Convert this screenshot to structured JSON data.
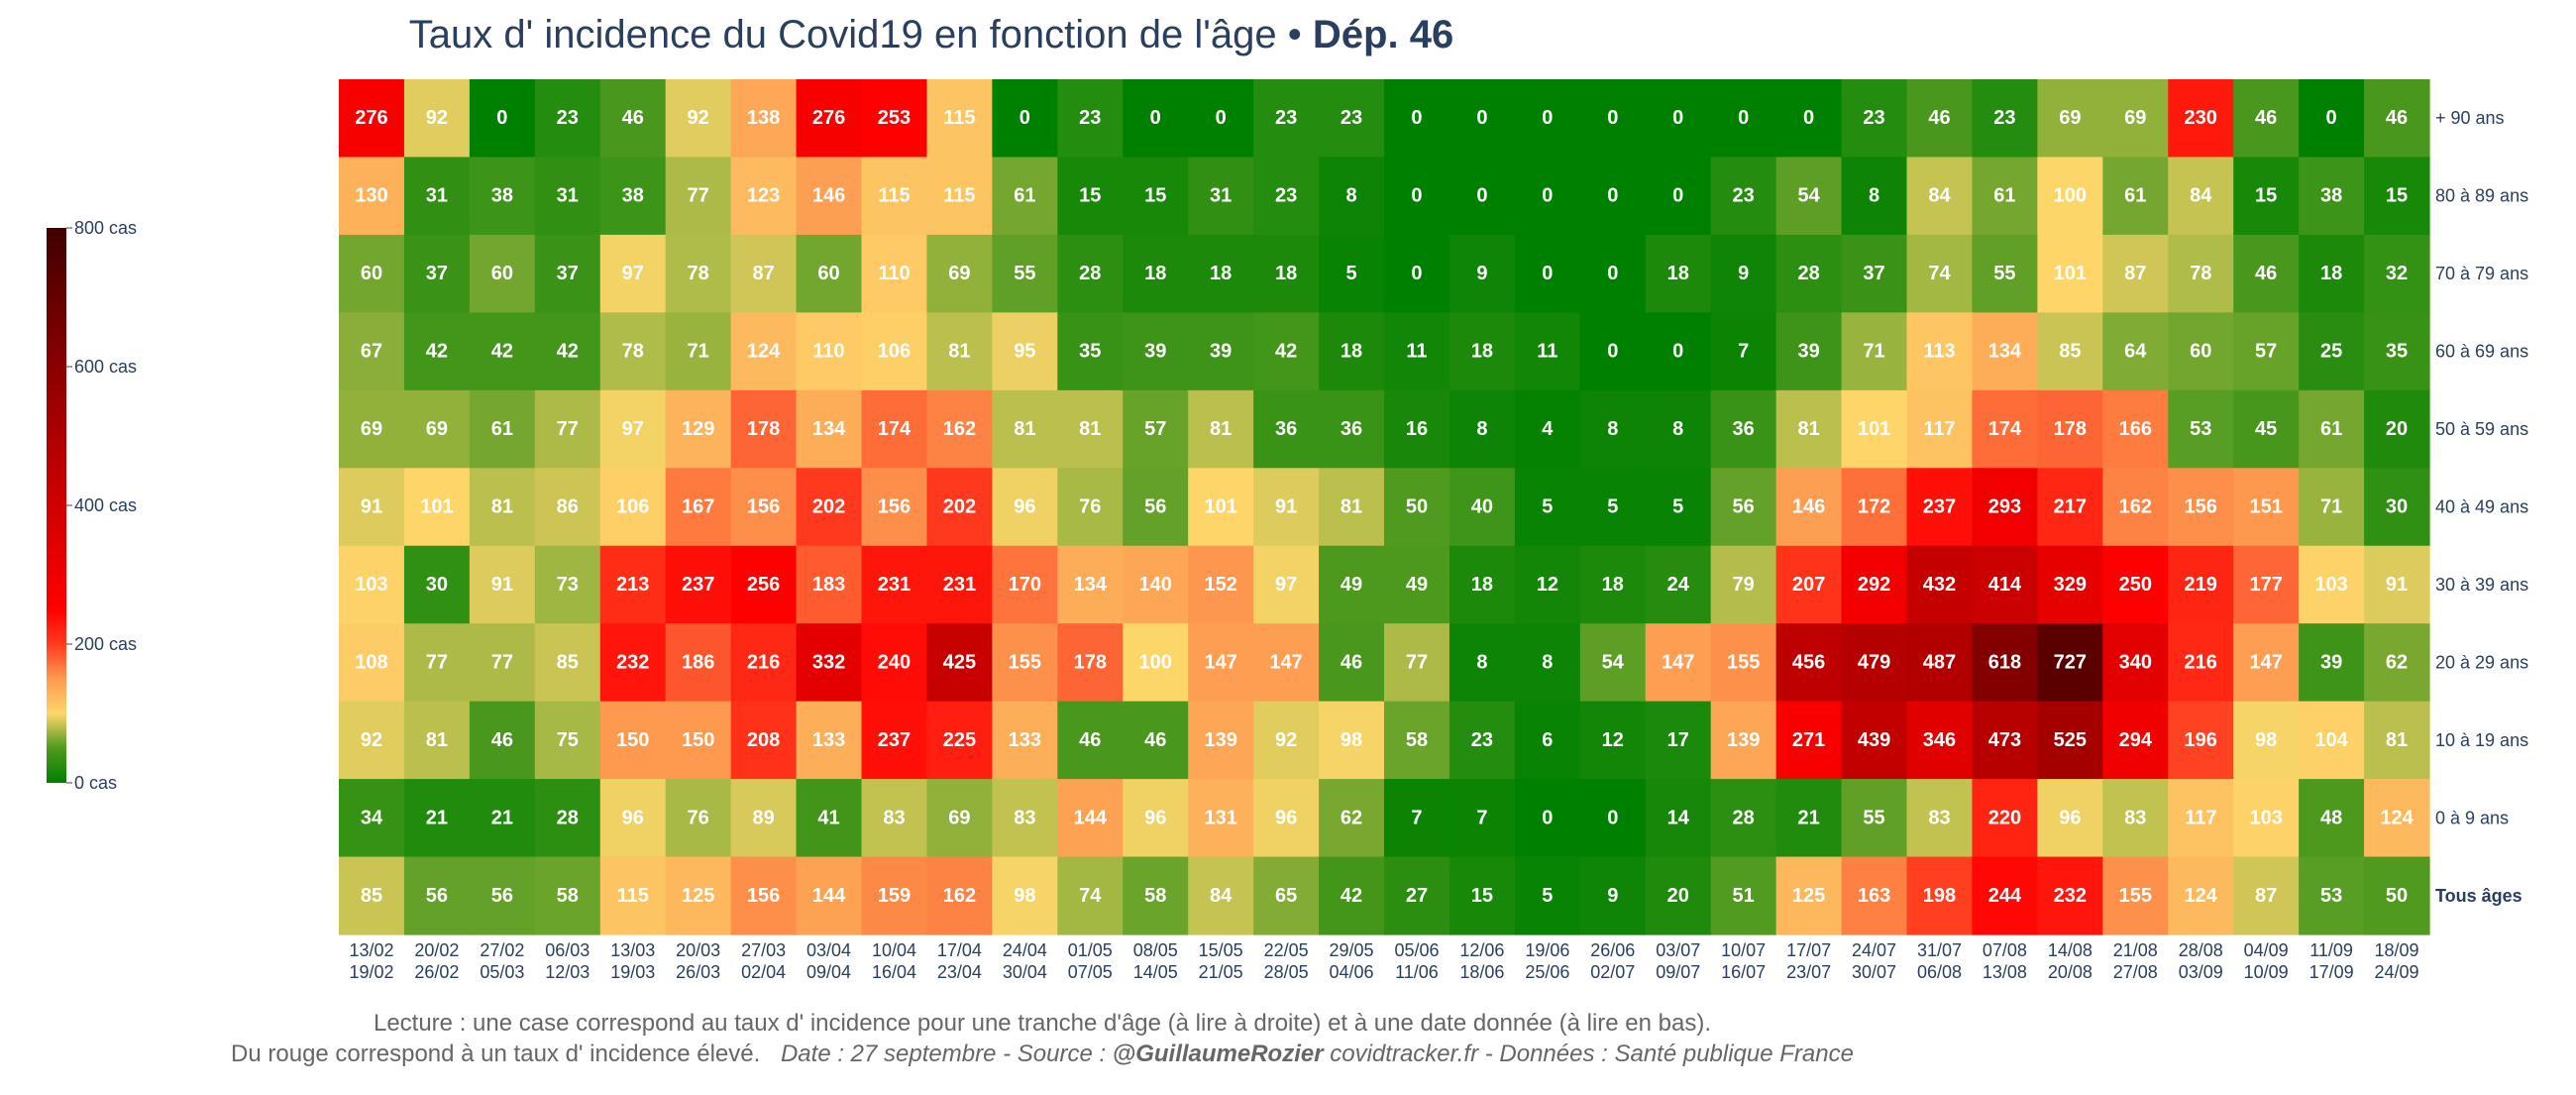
{
  "chart_data": {
    "type": "heatmap",
    "title": "Taux d' incidence du Covid19 en fonction de l'âge",
    "title_separator": "•",
    "title_dept": "Dép. 46",
    "rows": [
      "+ 90 ans",
      "80 à 89 ans",
      "70 à 79 ans",
      "60 à 69 ans",
      "50 à 59 ans",
      "40 à 49 ans",
      "30 à 39 ans",
      "20 à 29 ans",
      "10 à 19 ans",
      "0 à 9 ans",
      "Tous âges"
    ],
    "bold_row": "Tous âges",
    "columns": [
      [
        "13/02",
        "19/02"
      ],
      [
        "20/02",
        "26/02"
      ],
      [
        "27/02",
        "05/03"
      ],
      [
        "06/03",
        "12/03"
      ],
      [
        "13/03",
        "19/03"
      ],
      [
        "20/03",
        "26/03"
      ],
      [
        "27/03",
        "02/04"
      ],
      [
        "03/04",
        "09/04"
      ],
      [
        "10/04",
        "16/04"
      ],
      [
        "17/04",
        "23/04"
      ],
      [
        "24/04",
        "30/04"
      ],
      [
        "01/05",
        "07/05"
      ],
      [
        "08/05",
        "14/05"
      ],
      [
        "15/05",
        "21/05"
      ],
      [
        "22/05",
        "28/05"
      ],
      [
        "29/05",
        "04/06"
      ],
      [
        "05/06",
        "11/06"
      ],
      [
        "12/06",
        "18/06"
      ],
      [
        "19/06",
        "25/06"
      ],
      [
        "26/06",
        "02/07"
      ],
      [
        "03/07",
        "09/07"
      ],
      [
        "10/07",
        "16/07"
      ],
      [
        "17/07",
        "23/07"
      ],
      [
        "24/07",
        "30/07"
      ],
      [
        "31/07",
        "06/08"
      ],
      [
        "07/08",
        "13/08"
      ],
      [
        "14/08",
        "20/08"
      ],
      [
        "21/08",
        "27/08"
      ],
      [
        "28/08",
        "03/09"
      ],
      [
        "04/09",
        "10/09"
      ],
      [
        "11/09",
        "17/09"
      ],
      [
        "18/09",
        "24/09"
      ]
    ],
    "values": [
      [
        276,
        92,
        0,
        23,
        46,
        92,
        138,
        276,
        253,
        115,
        0,
        23,
        0,
        0,
        23,
        23,
        0,
        0,
        0,
        0,
        0,
        0,
        0,
        23,
        46,
        23,
        69,
        69,
        230,
        46,
        0,
        46
      ],
      [
        130,
        31,
        38,
        31,
        38,
        77,
        123,
        146,
        115,
        115,
        61,
        15,
        15,
        31,
        23,
        8,
        0,
        0,
        0,
        0,
        0,
        23,
        54,
        8,
        84,
        61,
        100,
        61,
        84,
        15,
        38,
        15
      ],
      [
        60,
        37,
        60,
        37,
        97,
        78,
        87,
        60,
        110,
        69,
        55,
        28,
        18,
        18,
        18,
        5,
        0,
        9,
        0,
        0,
        18,
        9,
        28,
        37,
        74,
        55,
        101,
        87,
        78,
        46,
        18,
        32
      ],
      [
        67,
        42,
        42,
        42,
        78,
        71,
        124,
        110,
        106,
        81,
        95,
        35,
        39,
        39,
        42,
        18,
        11,
        18,
        11,
        0,
        0,
        7,
        39,
        71,
        113,
        134,
        85,
        64,
        60,
        57,
        25,
        35
      ],
      [
        69,
        69,
        61,
        77,
        97,
        129,
        178,
        134,
        174,
        162,
        81,
        81,
        57,
        81,
        36,
        36,
        16,
        8,
        4,
        8,
        8,
        36,
        81,
        101,
        117,
        174,
        178,
        166,
        53,
        45,
        61,
        20
      ],
      [
        91,
        101,
        81,
        86,
        106,
        167,
        156,
        202,
        156,
        202,
        96,
        76,
        56,
        101,
        91,
        81,
        50,
        40,
        5,
        5,
        5,
        56,
        146,
        172,
        237,
        293,
        217,
        162,
        156,
        151,
        71,
        30
      ],
      [
        103,
        30,
        91,
        73,
        213,
        237,
        256,
        183,
        231,
        231,
        170,
        134,
        140,
        152,
        97,
        49,
        49,
        18,
        12,
        18,
        24,
        79,
        207,
        292,
        432,
        414,
        329,
        250,
        219,
        177,
        103,
        91
      ],
      [
        108,
        77,
        77,
        85,
        232,
        186,
        216,
        332,
        240,
        425,
        155,
        178,
        100,
        147,
        147,
        46,
        77,
        8,
        8,
        54,
        147,
        155,
        456,
        479,
        487,
        618,
        727,
        340,
        216,
        147,
        39,
        62
      ],
      [
        92,
        81,
        46,
        75,
        150,
        150,
        208,
        133,
        237,
        225,
        133,
        46,
        46,
        139,
        92,
        98,
        58,
        23,
        6,
        12,
        17,
        139,
        271,
        439,
        346,
        473,
        525,
        294,
        196,
        98,
        104,
        81
      ],
      [
        34,
        21,
        21,
        28,
        96,
        76,
        89,
        41,
        83,
        69,
        83,
        144,
        96,
        131,
        96,
        62,
        7,
        7,
        0,
        0,
        14,
        28,
        21,
        55,
        83,
        220,
        96,
        83,
        117,
        103,
        48,
        124
      ],
      [
        85,
        56,
        56,
        58,
        115,
        125,
        156,
        144,
        159,
        162,
        98,
        74,
        58,
        84,
        65,
        42,
        27,
        15,
        5,
        9,
        20,
        51,
        125,
        163,
        198,
        244,
        232,
        155,
        124,
        87,
        53,
        50
      ]
    ],
    "colorbar": {
      "min": 0,
      "max": 800,
      "ticks": [
        800,
        600,
        400,
        200,
        0
      ],
      "tick_labels": [
        "800 cas",
        "600 cas",
        "400 cas",
        "200 cas",
        "0 cas"
      ]
    },
    "colorscale": [
      [
        0,
        "#008000"
      ],
      [
        0.0625,
        "#4f9a1f"
      ],
      [
        0.125,
        "#fdd66a"
      ],
      [
        0.1875,
        "#fd9a50"
      ],
      [
        0.25,
        "#ff3b1e"
      ],
      [
        0.3125,
        "#ff0000"
      ],
      [
        0.5,
        "#d00000"
      ],
      [
        0.75,
        "#8b0000"
      ],
      [
        1,
        "#400000"
      ]
    ],
    "annotation_line1": "Lecture : une case correspond au taux d' incidence pour une tranche d'âge (à lire à droite) et à une date donnée (à lire en bas).",
    "annotation_line2_a": "Du rouge correspond à un taux d' incidence élevé.",
    "annotation_line2_b": "Date : 27 septembre - Source : ",
    "annotation_line2_author": "@GuillaumeRozier",
    "annotation_line2_c": " covidtracker.fr - Données : Santé publique France"
  }
}
